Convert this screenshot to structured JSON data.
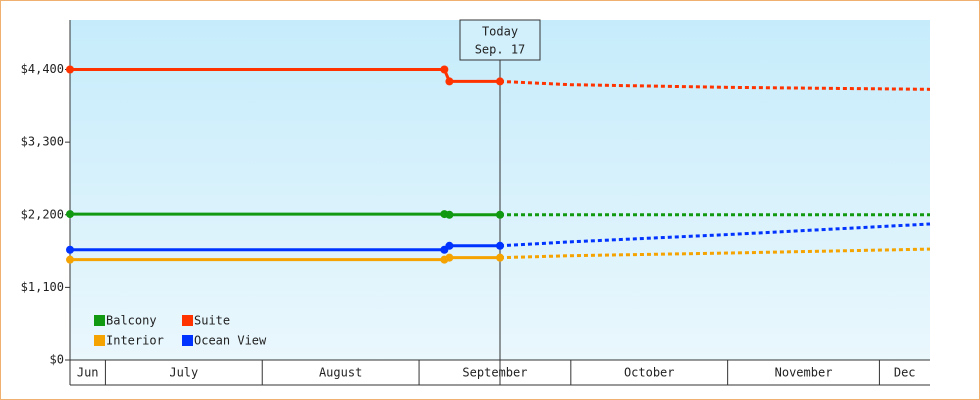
{
  "chart_data": {
    "type": "line",
    "x": [
      "06-24",
      "09-06",
      "09-07",
      "09-17",
      "10-01",
      "11-01",
      "12-11"
    ],
    "xlim": [
      "06-24",
      "12-11"
    ],
    "xticks": [
      {
        "value": "06-01",
        "label": "Jun"
      },
      {
        "value": "07-01",
        "label": "July"
      },
      {
        "value": "08-01",
        "label": "August"
      },
      {
        "value": "09-01",
        "label": "September"
      },
      {
        "value": "10-01",
        "label": "October"
      },
      {
        "value": "11-01",
        "label": "November"
      },
      {
        "value": "12-01",
        "label": "Dec"
      }
    ],
    "ylim": [
      0,
      5150
    ],
    "yticks": [
      {
        "value": 0,
        "label": "$0"
      },
      {
        "value": 1100,
        "label": "$1,100"
      },
      {
        "value": 2200,
        "label": "$2,200"
      },
      {
        "value": 3300,
        "label": "$3,300"
      },
      {
        "value": 4400,
        "label": "$4,400"
      }
    ],
    "today": {
      "label": "Today",
      "date": "Sep. 17",
      "x": "09-17"
    },
    "series": [
      {
        "name": "Balcony",
        "color": "#119911",
        "values": [
          2210,
          2210,
          2200,
          2200,
          2200,
          2200,
          2200
        ]
      },
      {
        "name": "Suite",
        "color": "#ff3300",
        "values": [
          4400,
          4400,
          4220,
          4220,
          4170,
          4130,
          4100
        ]
      },
      {
        "name": "Interior",
        "color": "#f5a300",
        "values": [
          1520,
          1520,
          1550,
          1550,
          1580,
          1620,
          1680
        ]
      },
      {
        "name": "Ocean View",
        "color": "#0033ff",
        "values": [
          1670,
          1670,
          1730,
          1730,
          1790,
          1900,
          2060
        ]
      }
    ]
  }
}
